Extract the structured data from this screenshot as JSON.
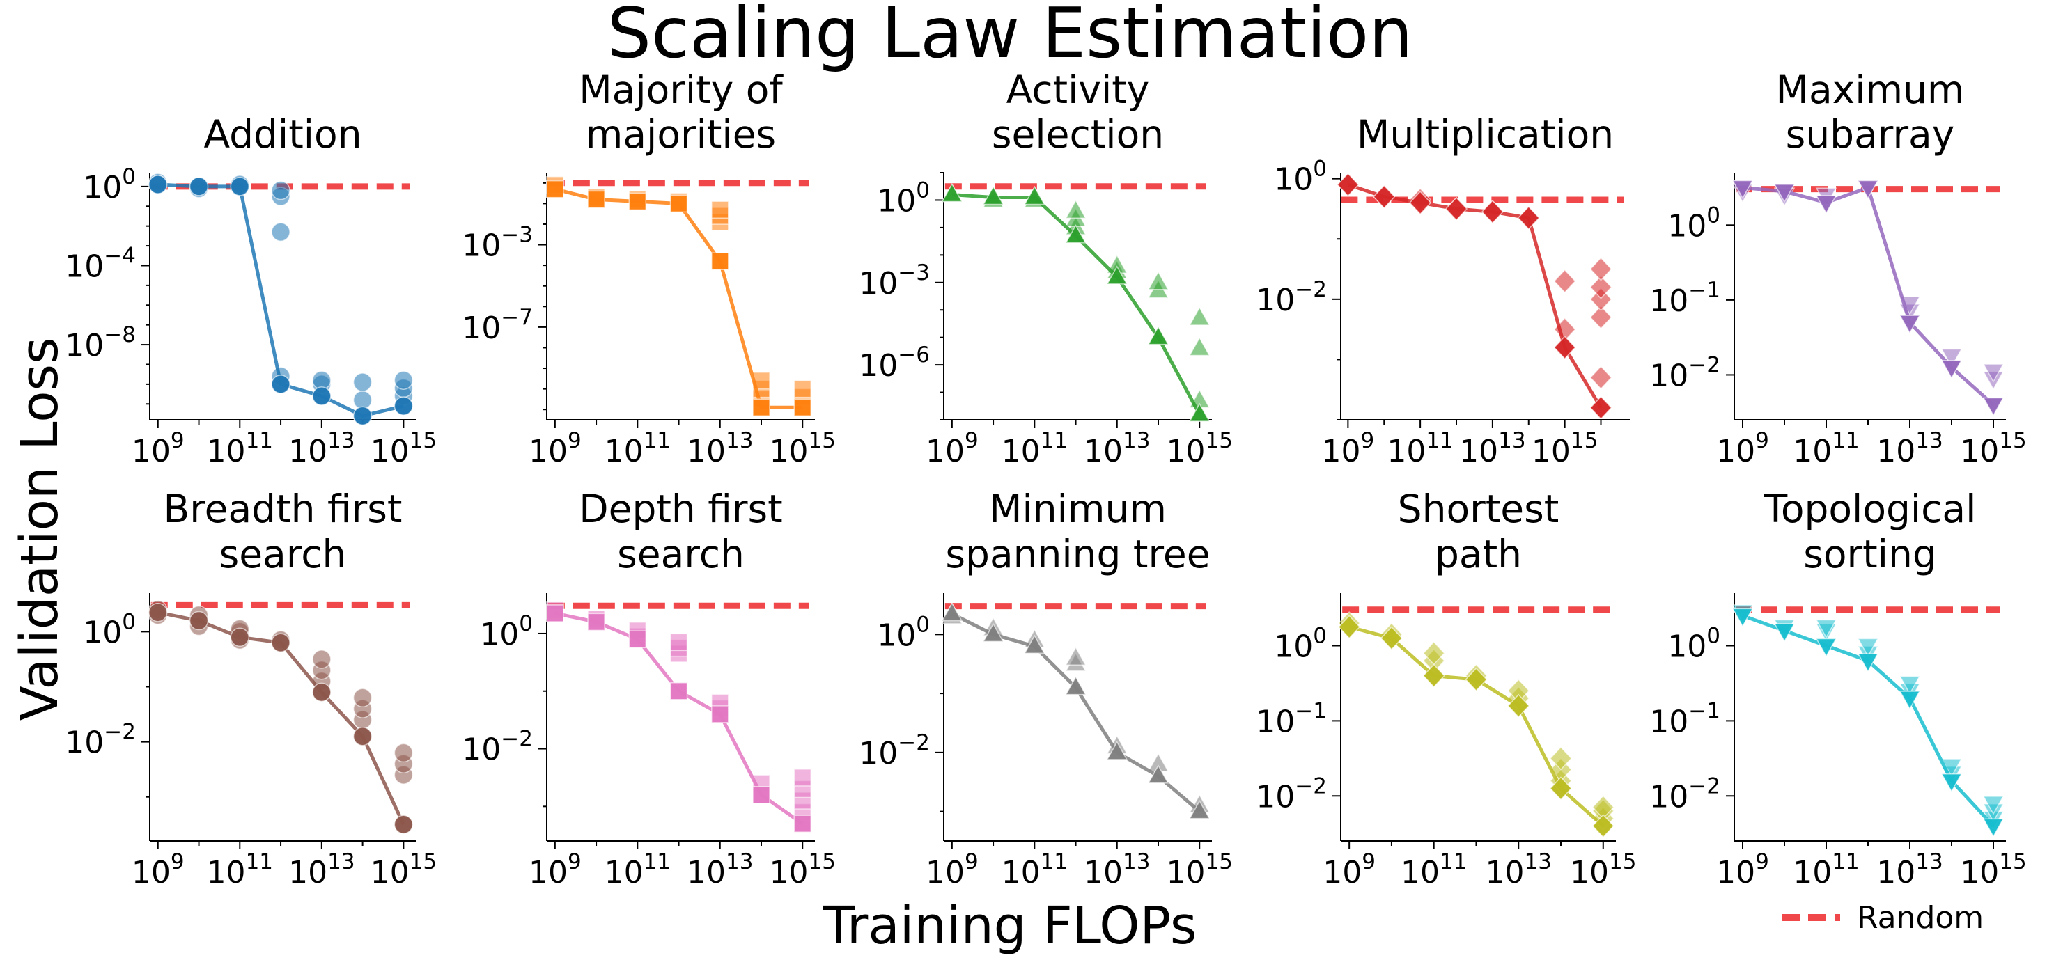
{
  "figure": {
    "title": "Scaling Law Estimation",
    "xlabel": "Training FLOPs",
    "ylabel": "Validation Loss",
    "legend": {
      "label": "Random",
      "position": "bottom-right"
    }
  },
  "colors": {
    "random_line": "#f0484a",
    "addition": "#1f77b4",
    "majority": "#ff7f0e",
    "activity": "#2ca02c",
    "multiplication": "#d62728",
    "max_subarray": "#9467bd",
    "bfs": "#8c564b",
    "dfs": "#e377c2",
    "mst": "#7f7f7f",
    "shortest": "#bcbd22",
    "topo": "#17becf"
  },
  "chart_data": [
    {
      "type": "scatter",
      "title": [
        "Addition"
      ],
      "color": "#1f77b4",
      "marker": "circle",
      "x_log_range": [
        8.8,
        15.3
      ],
      "y_log_range": [
        -11.8,
        0.7
      ],
      "x_ticks": [
        9,
        11,
        13,
        15
      ],
      "y_ticks": [
        0,
        -4,
        -8
      ],
      "random_loss_log": 0.0,
      "line_x": [
        9,
        10,
        11,
        12,
        13,
        14,
        15
      ],
      "line_y": [
        0.1,
        0.0,
        0.0,
        -10.0,
        -10.6,
        -11.6,
        -11.1
      ],
      "points": [
        [
          9,
          0.2
        ],
        [
          9,
          0.1
        ],
        [
          10,
          0.0
        ],
        [
          10,
          -0.1
        ],
        [
          11,
          0.0
        ],
        [
          11,
          0.1
        ],
        [
          12,
          -10.0
        ],
        [
          12,
          -9.6
        ],
        [
          12,
          -0.5
        ],
        [
          12,
          -0.2
        ],
        [
          12,
          -2.3
        ],
        [
          13,
          -10.6
        ],
        [
          13,
          -10.0
        ],
        [
          13,
          -9.8
        ],
        [
          14,
          -11.6
        ],
        [
          14,
          -10.8
        ],
        [
          14,
          -9.9
        ],
        [
          15,
          -11.1
        ],
        [
          15,
          -10.6
        ],
        [
          15,
          -10.2
        ],
        [
          15,
          -9.8
        ]
      ]
    },
    {
      "type": "scatter",
      "title": [
        "Majority of",
        "majorities"
      ],
      "color": "#ff7f0e",
      "marker": "square",
      "x_log_range": [
        8.8,
        15.3
      ],
      "y_log_range": [
        -11.5,
        0.5
      ],
      "x_ticks": [
        9,
        11,
        13,
        15
      ],
      "y_ticks": [
        -3,
        -7
      ],
      "random_loss_log": 0.0,
      "line_x": [
        9,
        10,
        11,
        12,
        13,
        14,
        15
      ],
      "line_y": [
        -0.3,
        -0.8,
        -0.9,
        -1.0,
        -3.8,
        -10.9,
        -10.9
      ],
      "points": [
        [
          9,
          -0.3
        ],
        [
          9,
          -0.1
        ],
        [
          10,
          -0.8
        ],
        [
          10,
          -0.7
        ],
        [
          11,
          -0.9
        ],
        [
          11,
          -0.8
        ],
        [
          12,
          -1.0
        ],
        [
          12,
          -0.9
        ],
        [
          13,
          -3.8
        ],
        [
          13,
          -1.9
        ],
        [
          13,
          -1.6
        ],
        [
          13,
          -1.3
        ],
        [
          14,
          -10.9
        ],
        [
          14,
          -10.5
        ],
        [
          14,
          -10.0
        ],
        [
          14,
          -9.6
        ],
        [
          15,
          -10.9
        ],
        [
          15,
          -10.4
        ],
        [
          15,
          -10.0
        ]
      ]
    },
    {
      "type": "scatter",
      "title": [
        "Activity",
        "selection"
      ],
      "color": "#2ca02c",
      "marker": "triangle-up",
      "x_log_range": [
        8.8,
        15.3
      ],
      "y_log_range": [
        -8.0,
        1.0
      ],
      "x_ticks": [
        9,
        11,
        13,
        15
      ],
      "y_ticks": [
        0,
        -3,
        -6
      ],
      "random_loss_log": 0.5,
      "line_x": [
        9,
        10,
        11,
        12,
        13,
        14,
        15
      ],
      "line_y": [
        0.2,
        0.1,
        0.1,
        -1.3,
        -2.8,
        -5.0,
        -7.8
      ],
      "points": [
        [
          9,
          0.2
        ],
        [
          10,
          0.1
        ],
        [
          10,
          0.0
        ],
        [
          11,
          0.1
        ],
        [
          11,
          0.0
        ],
        [
          12,
          -1.3
        ],
        [
          12,
          -1.0
        ],
        [
          12,
          -0.7
        ],
        [
          12,
          -0.4
        ],
        [
          13,
          -2.8
        ],
        [
          13,
          -2.6
        ],
        [
          13,
          -2.4
        ],
        [
          14,
          -5.0
        ],
        [
          14,
          -3.3
        ],
        [
          14,
          -3.0
        ],
        [
          15,
          -7.8
        ],
        [
          15,
          -7.3
        ],
        [
          15,
          -5.4
        ],
        [
          15,
          -4.3
        ]
      ]
    },
    {
      "type": "scatter",
      "title": [
        "Multiplication"
      ],
      "color": "#d62728",
      "marker": "diamond",
      "x_log_range": [
        8.8,
        16.8
      ],
      "y_log_range": [
        -4.0,
        0.1
      ],
      "x_ticks": [
        9,
        11,
        13,
        15
      ],
      "y_ticks": [
        0,
        -2
      ],
      "random_loss_log": -0.35,
      "line_x": [
        9,
        10,
        11,
        12,
        13,
        14,
        15,
        16
      ],
      "line_y": [
        -0.1,
        -0.3,
        -0.4,
        -0.5,
        -0.55,
        -0.65,
        -2.8,
        -3.8
      ],
      "points": [
        [
          9,
          -0.1
        ],
        [
          10,
          -0.3
        ],
        [
          11,
          -0.4
        ],
        [
          11,
          -0.35
        ],
        [
          12,
          -0.5
        ],
        [
          13,
          -0.55
        ],
        [
          14,
          -0.65
        ],
        [
          15,
          -2.8
        ],
        [
          15,
          -2.5
        ],
        [
          15,
          -1.7
        ],
        [
          16,
          -3.8
        ],
        [
          16,
          -3.3
        ],
        [
          16,
          -2.3
        ],
        [
          16,
          -2.0
        ],
        [
          16,
          -1.8
        ],
        [
          16,
          -1.5
        ]
      ]
    },
    {
      "type": "scatter",
      "title": [
        "Maximum",
        "subarray"
      ],
      "color": "#9467bd",
      "marker": "triangle-down",
      "x_log_range": [
        8.8,
        15.3
      ],
      "y_log_range": [
        -2.6,
        0.7
      ],
      "x_ticks": [
        9,
        11,
        13,
        15
      ],
      "y_ticks": [
        0,
        -1,
        -2
      ],
      "random_loss_log": 0.48,
      "line_x": [
        9,
        10,
        11,
        12,
        13,
        14,
        15
      ],
      "line_y": [
        0.5,
        0.45,
        0.3,
        0.5,
        -1.3,
        -1.9,
        -2.4
      ],
      "points": [
        [
          9,
          0.5
        ],
        [
          9,
          0.45
        ],
        [
          10,
          0.45
        ],
        [
          10,
          0.4
        ],
        [
          11,
          0.3
        ],
        [
          11,
          0.4
        ],
        [
          12,
          0.5
        ],
        [
          13,
          -1.3
        ],
        [
          13,
          -1.15
        ],
        [
          13,
          -1.05
        ],
        [
          14,
          -1.9
        ],
        [
          14,
          -1.75
        ],
        [
          15,
          -2.4
        ],
        [
          15,
          -2.05
        ],
        [
          15,
          -1.95
        ]
      ]
    },
    {
      "type": "scatter",
      "title": [
        "Breadth first",
        "search"
      ],
      "color": "#8c564b",
      "marker": "circle",
      "x_log_range": [
        8.8,
        15.3
      ],
      "y_log_range": [
        -3.8,
        0.7
      ],
      "x_ticks": [
        9,
        11,
        13,
        15
      ],
      "y_ticks": [
        0,
        -2
      ],
      "random_loss_log": 0.48,
      "line_x": [
        9,
        10,
        11,
        12,
        13,
        14,
        15
      ],
      "line_y": [
        0.35,
        0.2,
        -0.1,
        -0.2,
        -1.1,
        -1.9,
        -3.5
      ],
      "points": [
        [
          9,
          0.35
        ],
        [
          9,
          0.4
        ],
        [
          9,
          0.3
        ],
        [
          10,
          0.2
        ],
        [
          10,
          0.3
        ],
        [
          10,
          0.1
        ],
        [
          11,
          -0.1
        ],
        [
          11,
          0.0
        ],
        [
          11,
          0.05
        ],
        [
          11,
          -0.15
        ],
        [
          12,
          -0.2
        ],
        [
          12,
          -0.15
        ],
        [
          13,
          -1.1
        ],
        [
          13,
          -0.9
        ],
        [
          13,
          -0.7
        ],
        [
          13,
          -0.5
        ],
        [
          14,
          -1.9
        ],
        [
          14,
          -1.6
        ],
        [
          14,
          -1.4
        ],
        [
          14,
          -1.2
        ],
        [
          15,
          -3.5
        ],
        [
          15,
          -2.6
        ],
        [
          15,
          -2.4
        ],
        [
          15,
          -2.2
        ]
      ]
    },
    {
      "type": "scatter",
      "title": [
        "Depth first",
        "search"
      ],
      "color": "#e377c2",
      "marker": "square",
      "x_log_range": [
        8.8,
        15.3
      ],
      "y_log_range": [
        -3.6,
        0.7
      ],
      "x_ticks": [
        9,
        11,
        13,
        15
      ],
      "y_ticks": [
        0,
        -2
      ],
      "random_loss_log": 0.48,
      "line_x": [
        9,
        10,
        11,
        12,
        13,
        14,
        15
      ],
      "line_y": [
        0.35,
        0.2,
        -0.1,
        -1.0,
        -1.4,
        -2.8,
        -3.3
      ],
      "points": [
        [
          9,
          0.35
        ],
        [
          9,
          0.4
        ],
        [
          10,
          0.2
        ],
        [
          10,
          0.25
        ],
        [
          11,
          -0.1
        ],
        [
          11,
          -0.05
        ],
        [
          11,
          0.05
        ],
        [
          12,
          -1.0
        ],
        [
          12,
          -0.35
        ],
        [
          12,
          -0.25
        ],
        [
          12,
          -0.15
        ],
        [
          13,
          -1.4
        ],
        [
          13,
          -1.3
        ],
        [
          13,
          -1.2
        ],
        [
          14,
          -2.8
        ],
        [
          14,
          -2.6
        ],
        [
          15,
          -3.3
        ],
        [
          15,
          -3.1
        ],
        [
          15,
          -2.9
        ],
        [
          15,
          -2.7
        ],
        [
          15,
          -2.5
        ]
      ]
    },
    {
      "type": "scatter",
      "title": [
        "Minimum",
        "spanning tree"
      ],
      "color": "#7f7f7f",
      "marker": "triangle-up",
      "x_log_range": [
        8.8,
        15.3
      ],
      "y_log_range": [
        -3.5,
        0.7
      ],
      "x_ticks": [
        9,
        11,
        13,
        15
      ],
      "y_ticks": [
        0,
        -2
      ],
      "random_loss_log": 0.48,
      "line_x": [
        9,
        10,
        11,
        12,
        13,
        14,
        15
      ],
      "line_y": [
        0.35,
        0.0,
        -0.2,
        -0.9,
        -2.0,
        -2.4,
        -3.0
      ],
      "points": [
        [
          9,
          0.35
        ],
        [
          9,
          0.3
        ],
        [
          10,
          0.0
        ],
        [
          10,
          0.1
        ],
        [
          11,
          -0.2
        ],
        [
          11,
          -0.1
        ],
        [
          12,
          -0.9
        ],
        [
          12,
          -0.5
        ],
        [
          12,
          -0.4
        ],
        [
          13,
          -2.0
        ],
        [
          13,
          -1.9
        ],
        [
          14,
          -2.4
        ],
        [
          14,
          -2.2
        ],
        [
          15,
          -3.0
        ],
        [
          15,
          -2.9
        ]
      ]
    },
    {
      "type": "scatter",
      "title": [
        "Shortest",
        "path"
      ],
      "color": "#bcbd22",
      "marker": "diamond",
      "x_log_range": [
        8.8,
        15.3
      ],
      "y_log_range": [
        -2.6,
        0.7
      ],
      "x_ticks": [
        9,
        11,
        13,
        15
      ],
      "y_ticks": [
        0,
        -1,
        -2
      ],
      "random_loss_log": 0.48,
      "line_x": [
        9,
        10,
        11,
        12,
        13,
        14,
        15
      ],
      "line_y": [
        0.25,
        0.1,
        -0.4,
        -0.45,
        -0.8,
        -1.9,
        -2.4
      ],
      "points": [
        [
          9,
          0.25
        ],
        [
          9,
          0.3
        ],
        [
          10,
          0.1
        ],
        [
          10,
          0.15
        ],
        [
          11,
          -0.4
        ],
        [
          11,
          -0.2
        ],
        [
          11,
          -0.1
        ],
        [
          12,
          -0.45
        ],
        [
          12,
          -0.4
        ],
        [
          13,
          -0.8
        ],
        [
          13,
          -0.7
        ],
        [
          13,
          -0.6
        ],
        [
          14,
          -1.9
        ],
        [
          14,
          -1.8
        ],
        [
          14,
          -1.65
        ],
        [
          14,
          -1.5
        ],
        [
          15,
          -2.4
        ],
        [
          15,
          -2.3
        ],
        [
          15,
          -2.2
        ],
        [
          15,
          -2.15
        ]
      ]
    },
    {
      "type": "scatter",
      "title": [
        "Topological",
        "sorting"
      ],
      "color": "#17becf",
      "marker": "triangle-down",
      "x_log_range": [
        8.8,
        15.3
      ],
      "y_log_range": [
        -2.6,
        0.7
      ],
      "x_ticks": [
        9,
        11,
        13,
        15
      ],
      "y_ticks": [
        0,
        -1,
        -2
      ],
      "random_loss_log": 0.48,
      "line_x": [
        9,
        10,
        11,
        12,
        13,
        14,
        15
      ],
      "line_y": [
        0.4,
        0.2,
        0.0,
        -0.2,
        -0.7,
        -1.8,
        -2.4
      ],
      "points": [
        [
          9,
          0.4
        ],
        [
          9,
          0.45
        ],
        [
          10,
          0.2
        ],
        [
          10,
          0.25
        ],
        [
          11,
          0.0
        ],
        [
          11,
          0.2
        ],
        [
          11,
          0.25
        ],
        [
          12,
          -0.2
        ],
        [
          12,
          -0.1
        ],
        [
          12,
          0.0
        ],
        [
          13,
          -0.7
        ],
        [
          13,
          -0.6
        ],
        [
          13,
          -0.5
        ],
        [
          14,
          -1.8
        ],
        [
          14,
          -1.7
        ],
        [
          14,
          -1.6
        ],
        [
          15,
          -2.4
        ],
        [
          15,
          -2.3
        ],
        [
          15,
          -2.2
        ],
        [
          15,
          -2.1
        ]
      ]
    }
  ]
}
